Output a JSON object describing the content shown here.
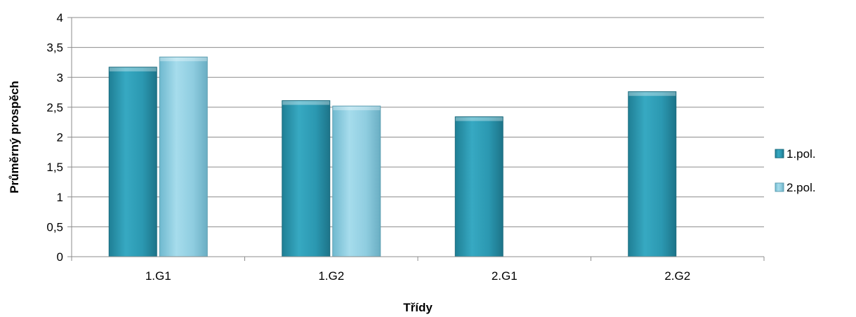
{
  "chart_data": {
    "type": "bar",
    "title": "",
    "xlabel": "Třídy",
    "ylabel": "Průměrný prospěch",
    "categories": [
      "1.G1",
      "1.G2",
      "2.G1",
      "2.G2"
    ],
    "series": [
      {
        "name": "1.pol.",
        "values": [
          3.17,
          2.61,
          2.34,
          2.76
        ],
        "color": "#2e9db5"
      },
      {
        "name": "2.pol.",
        "values": [
          3.34,
          2.52,
          null,
          null
        ],
        "color": "#8fd0e3"
      }
    ],
    "ylim": [
      0,
      4
    ],
    "yticks": [
      0,
      0.5,
      1,
      1.5,
      2,
      2.5,
      3,
      3.5,
      4
    ],
    "ytick_labels": [
      "0",
      "0,5",
      "1",
      "1,5",
      "2",
      "2,5",
      "3",
      "3,5",
      "4"
    ],
    "grid": true,
    "legend_position": "right"
  }
}
